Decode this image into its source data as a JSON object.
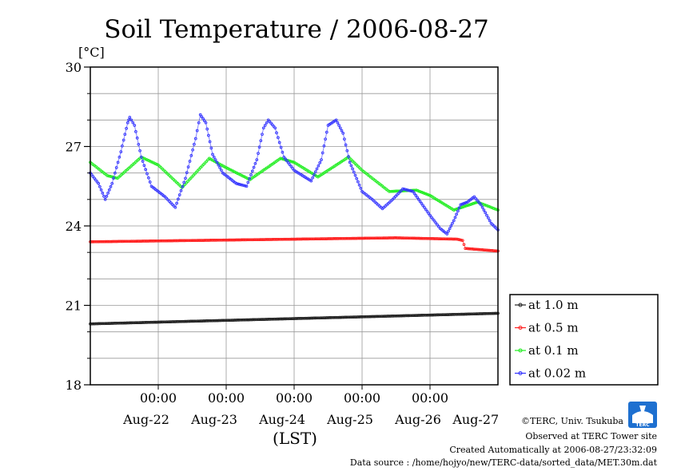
{
  "page": {
    "title": "Soil Temperature / 2006-08-27",
    "unit_label": "[°C]",
    "x_axis_label": "(LST)",
    "credits": [
      "©TERC, Univ. Tsukuba",
      "Observed at TERC Tower site",
      "Created Automatically at 2006-08-27/23:32:09",
      "Data source : /home/hojyo/new/TERC-data/sorted_data/MET.30m.dat"
    ],
    "logo_text": "TERC"
  },
  "chart_data": {
    "type": "line",
    "title": "Soil Temperature / 2006-08-27",
    "ylabel": "[°C]",
    "xlabel": "(LST)",
    "ylim": [
      18,
      30
    ],
    "yticks": [
      18,
      21,
      24,
      27,
      30
    ],
    "xlim": [
      0,
      6
    ],
    "x_unit": "days from start of plot",
    "time_ticks": [
      {
        "x": 1,
        "label": "00:00",
        "date": "Aug-22"
      },
      {
        "x": 2,
        "label": "00:00",
        "date": "Aug-23"
      },
      {
        "x": 3,
        "label": "00:00",
        "date": "Aug-24"
      },
      {
        "x": 4,
        "label": "00:00",
        "date": "Aug-25"
      },
      {
        "x": 5,
        "label": "00:00",
        "date": "Aug-26"
      }
    ],
    "extra_date_label": {
      "x": 5.85,
      "label": "Aug-27"
    },
    "grid": true,
    "legend_position": "right",
    "series": [
      {
        "name": "at 1.0 m",
        "color": "#222222",
        "points": [
          [
            0,
            20.3
          ],
          [
            6,
            20.7
          ]
        ]
      },
      {
        "name": "at 0.5 m",
        "color": "#ff2020",
        "points": [
          [
            0,
            23.4
          ],
          [
            4.5,
            23.55
          ],
          [
            5.4,
            23.5
          ],
          [
            5.48,
            23.45
          ],
          [
            5.52,
            23.15
          ],
          [
            6,
            23.05
          ]
        ]
      },
      {
        "name": "at 0.1 m",
        "color": "#22ee22",
        "points": [
          [
            0,
            26.4
          ],
          [
            0.25,
            25.9
          ],
          [
            0.4,
            25.8
          ],
          [
            0.75,
            26.6
          ],
          [
            1.0,
            26.3
          ],
          [
            1.35,
            25.45
          ],
          [
            1.75,
            26.55
          ],
          [
            2.0,
            26.2
          ],
          [
            2.35,
            25.75
          ],
          [
            2.8,
            26.55
          ],
          [
            3.0,
            26.4
          ],
          [
            3.35,
            25.85
          ],
          [
            3.8,
            26.6
          ],
          [
            4.0,
            26.1
          ],
          [
            4.4,
            25.3
          ],
          [
            4.8,
            25.35
          ],
          [
            5.0,
            25.15
          ],
          [
            5.35,
            24.6
          ],
          [
            5.7,
            24.9
          ],
          [
            6,
            24.6
          ]
        ]
      },
      {
        "name": "at 0.02 m",
        "color": "#3333ff",
        "points": [
          [
            0,
            26.0
          ],
          [
            0.12,
            25.6
          ],
          [
            0.22,
            25.0
          ],
          [
            0.32,
            25.6
          ],
          [
            0.45,
            26.8
          ],
          [
            0.55,
            27.9
          ],
          [
            0.58,
            28.1
          ],
          [
            0.65,
            27.8
          ],
          [
            0.75,
            26.6
          ],
          [
            0.9,
            25.5
          ],
          [
            1.1,
            25.1
          ],
          [
            1.25,
            24.7
          ],
          [
            1.4,
            25.8
          ],
          [
            1.55,
            27.3
          ],
          [
            1.62,
            28.2
          ],
          [
            1.7,
            27.9
          ],
          [
            1.8,
            26.7
          ],
          [
            1.95,
            26.0
          ],
          [
            2.15,
            25.6
          ],
          [
            2.3,
            25.5
          ],
          [
            2.45,
            26.5
          ],
          [
            2.55,
            27.7
          ],
          [
            2.62,
            28.0
          ],
          [
            2.72,
            27.7
          ],
          [
            2.85,
            26.6
          ],
          [
            3.0,
            26.1
          ],
          [
            3.25,
            25.7
          ],
          [
            3.4,
            26.5
          ],
          [
            3.5,
            27.8
          ],
          [
            3.62,
            28.0
          ],
          [
            3.72,
            27.5
          ],
          [
            3.82,
            26.4
          ],
          [
            4.0,
            25.3
          ],
          [
            4.15,
            25.0
          ],
          [
            4.3,
            24.65
          ],
          [
            4.45,
            25.0
          ],
          [
            4.6,
            25.4
          ],
          [
            4.75,
            25.3
          ],
          [
            5.0,
            24.4
          ],
          [
            5.15,
            23.9
          ],
          [
            5.25,
            23.7
          ],
          [
            5.35,
            24.2
          ],
          [
            5.45,
            24.8
          ],
          [
            5.55,
            24.9
          ],
          [
            5.65,
            25.1
          ],
          [
            5.75,
            24.8
          ],
          [
            5.9,
            24.1
          ],
          [
            6,
            23.85
          ]
        ]
      }
    ]
  }
}
